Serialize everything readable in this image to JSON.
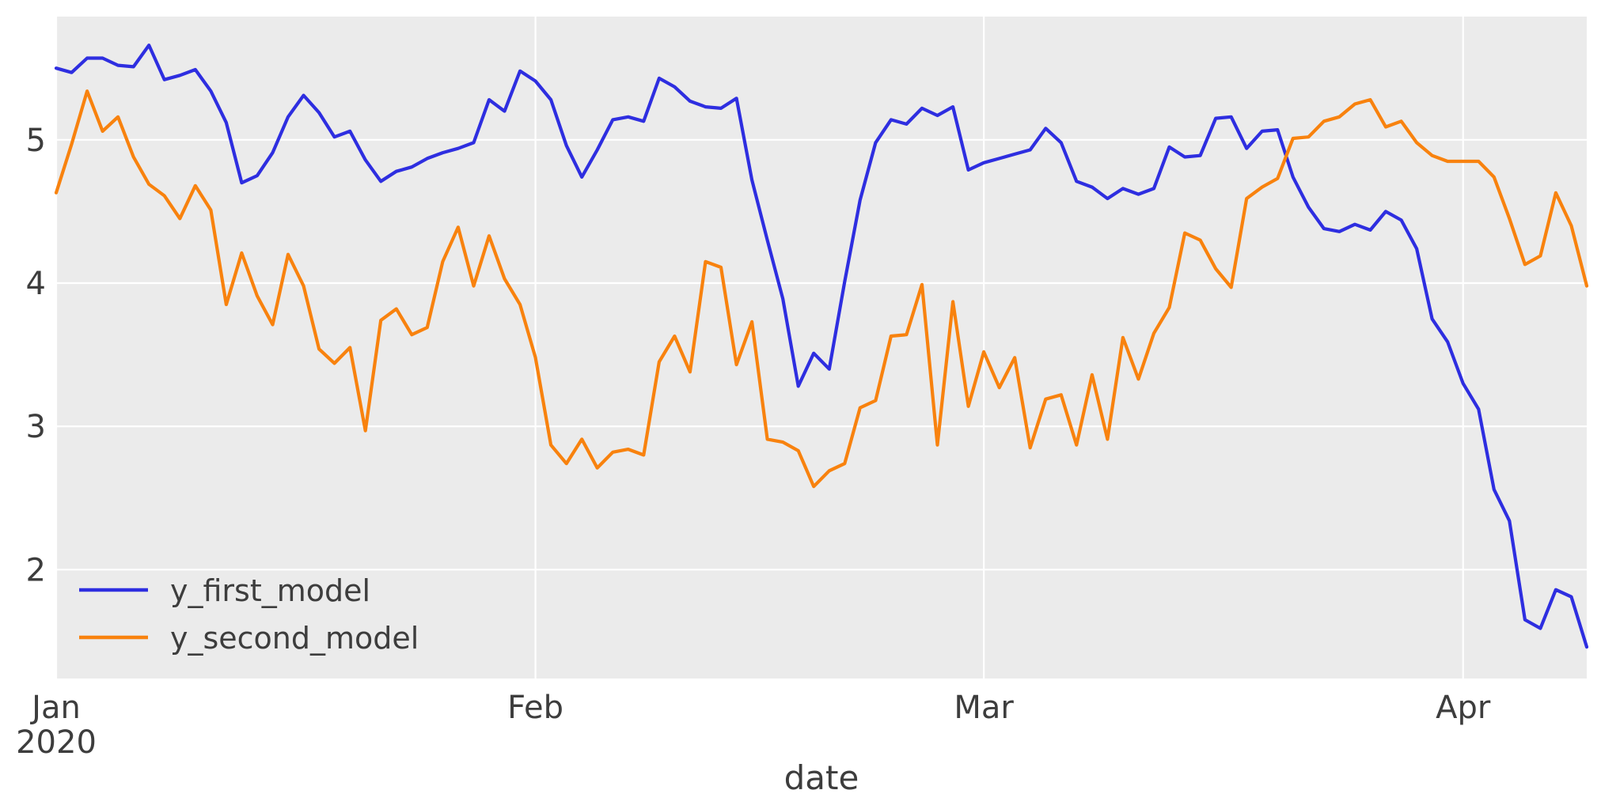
{
  "chart_data": {
    "type": "line",
    "title": "",
    "xlabel": "date",
    "ylabel": "",
    "x_start_date": "2020-01-01",
    "x_frequency": "daily",
    "x_num_points": 100,
    "x_tick_labels": [
      "Jan",
      "Feb",
      "Mar",
      "Apr"
    ],
    "x_tick_sublabel": "2020",
    "x_tick_day_index": [
      0,
      31,
      60,
      91
    ],
    "y_tick_labels": [
      "2",
      "3",
      "4",
      "5"
    ],
    "y_ticks": [
      2,
      3,
      4,
      5
    ],
    "ylim": [
      1.24,
      5.86
    ],
    "grid": true,
    "legend_position": "lower left",
    "colors": {
      "plot_background": "#ebebeb",
      "gridline": "#ffffff",
      "tick_text": "#3d3d3d",
      "first_series": "#2e2ee0",
      "second_series": "#f8820e"
    },
    "series": [
      {
        "name": "y_first_model",
        "color": "#2e2ee0",
        "values": [
          5.5,
          5.47,
          5.57,
          5.57,
          5.52,
          5.51,
          5.66,
          5.42,
          5.45,
          5.49,
          5.34,
          5.12,
          4.7,
          4.75,
          4.91,
          5.16,
          5.31,
          5.19,
          5.02,
          5.06,
          4.86,
          4.71,
          4.78,
          4.81,
          4.87,
          4.91,
          4.94,
          4.98,
          5.28,
          5.2,
          5.48,
          5.41,
          5.28,
          4.96,
          4.74,
          4.93,
          5.14,
          5.16,
          5.13,
          5.43,
          5.37,
          5.27,
          5.23,
          5.22,
          5.29,
          4.72,
          4.3,
          3.89,
          3.28,
          3.51,
          3.4,
          4.01,
          4.58,
          4.98,
          5.14,
          5.11,
          5.22,
          5.17,
          5.23,
          4.79,
          4.84,
          4.87,
          4.9,
          4.93,
          5.08,
          4.98,
          4.71,
          4.67,
          4.59,
          4.66,
          4.62,
          4.66,
          4.95,
          4.88,
          4.89,
          5.15,
          5.16,
          4.94,
          5.06,
          5.07,
          4.74,
          4.53,
          4.38,
          4.36,
          4.41,
          4.37,
          4.5,
          4.44,
          4.24,
          3.75,
          3.59,
          3.3,
          3.12,
          2.56,
          2.34,
          1.65,
          1.59,
          1.86,
          1.81,
          1.46
        ]
      },
      {
        "name": "y_second_model",
        "color": "#f8820e",
        "values": [
          4.63,
          4.97,
          5.34,
          5.06,
          5.16,
          4.88,
          4.69,
          4.61,
          4.45,
          4.68,
          4.51,
          3.85,
          4.21,
          3.91,
          3.71,
          4.2,
          3.98,
          3.54,
          3.44,
          3.55,
          2.97,
          3.74,
          3.82,
          3.64,
          3.69,
          4.15,
          4.39,
          3.98,
          4.33,
          4.03,
          3.85,
          3.48,
          2.87,
          2.74,
          2.91,
          2.71,
          2.82,
          2.84,
          2.8,
          3.45,
          3.63,
          3.38,
          4.15,
          4.11,
          3.43,
          3.73,
          2.91,
          2.89,
          2.83,
          2.58,
          2.69,
          2.74,
          3.13,
          3.18,
          3.63,
          3.64,
          3.99,
          2.87,
          3.87,
          3.14,
          3.52,
          3.27,
          3.48,
          2.85,
          3.19,
          3.22,
          2.87,
          3.36,
          2.91,
          3.62,
          3.33,
          3.65,
          3.83,
          4.35,
          4.3,
          4.1,
          3.97,
          4.59,
          4.67,
          4.73,
          5.01,
          5.02,
          5.13,
          5.16,
          5.25,
          5.28,
          5.09,
          5.13,
          4.98,
          4.89,
          4.85,
          4.85,
          4.85,
          4.74,
          4.45,
          4.13,
          4.19,
          4.63,
          4.4,
          3.98
        ]
      }
    ],
    "legend": [
      {
        "label": "y_first_model"
      },
      {
        "label": "y_second_model"
      }
    ]
  }
}
